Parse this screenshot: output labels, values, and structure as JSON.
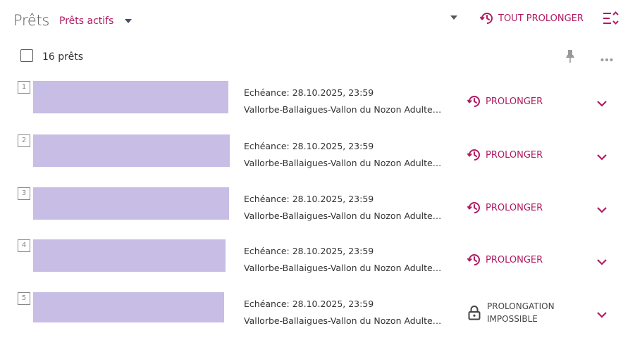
{
  "header": {
    "title": "Prêts",
    "filter_label": "Prêts actifs",
    "extend_all_label": "TOUT PROLONGER"
  },
  "toolbar": {
    "count_label": "16 prêts"
  },
  "colors": {
    "accent": "#b01b62",
    "cover_placeholder": "#c7bde5"
  },
  "loans": [
    {
      "index": "1",
      "due": "Echéance: 28.10.2025, 23:59",
      "library": "Vallorbe-Ballaigues-Vallon du Nozon Adultes …",
      "action": "PROLONGER",
      "renewable": true
    },
    {
      "index": "2",
      "due": "Echéance: 28.10.2025, 23:59",
      "library": "Vallorbe-Ballaigues-Vallon du Nozon Adultes …",
      "action": "PROLONGER",
      "renewable": true
    },
    {
      "index": "3",
      "due": "Echéance: 28.10.2025, 23:59",
      "library": "Vallorbe-Ballaigues-Vallon du Nozon Adultes …",
      "action": "PROLONGER",
      "renewable": true
    },
    {
      "index": "4",
      "due": "Echéance: 28.10.2025, 23:59",
      "library": "Vallorbe-Ballaigues-Vallon du Nozon Adultes …",
      "action": "PROLONGER",
      "renewable": true
    },
    {
      "index": "5",
      "due": "Echéance: 28.10.2025, 23:59",
      "library": "Vallorbe-Ballaigues-Vallon du Nozon Adultes …",
      "action_line1": "PROLONGATION",
      "action_line2": "IMPOSSIBLE",
      "renewable": false
    }
  ],
  "icons": {
    "extend": "clock-renew-icon",
    "blocked": "lock-icon",
    "expand": "chevron-down-icon",
    "sort": "sort-list-icon",
    "pin": "pin-icon",
    "more": "more-dots-icon"
  }
}
